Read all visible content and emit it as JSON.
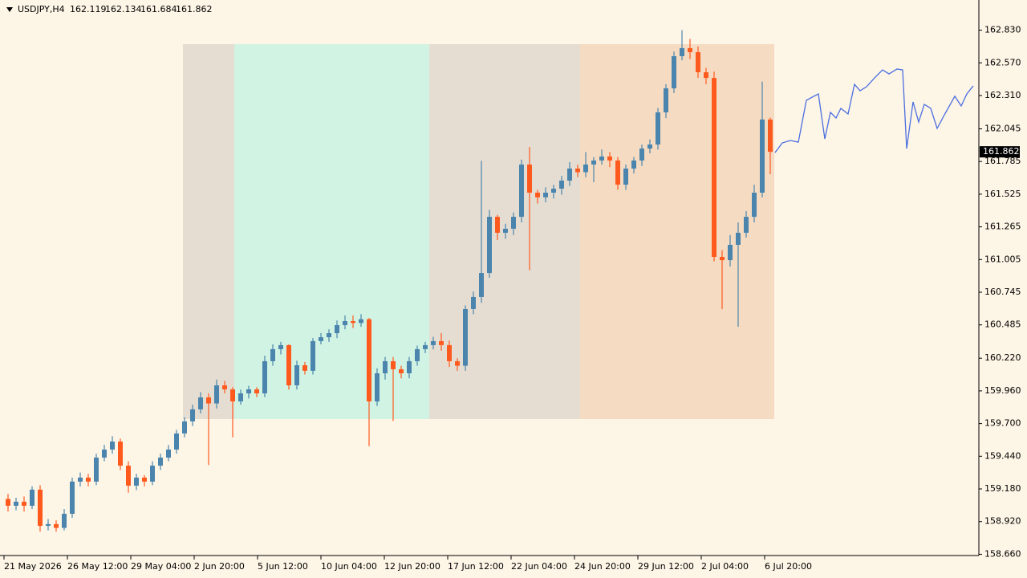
{
  "chart_data": {
    "type": "candlestick",
    "title": "USDJPY,H4",
    "up_color": "#4b85ad",
    "down_color": "#ff5a1e",
    "open": [
      159.1,
      159.046,
      159.078,
      159.046,
      159.174,
      158.886,
      158.9,
      158.87,
      158.982,
      159.238,
      159.27,
      159.238,
      159.429,
      159.493,
      159.557,
      159.365,
      159.206,
      159.27,
      159.238,
      159.365,
      159.429,
      159.493,
      159.621,
      159.717,
      159.813,
      159.908,
      159.86,
      160.004,
      159.972,
      159.876,
      159.94,
      159.972,
      159.94,
      160.196,
      160.292,
      160.324,
      160.004,
      160.164,
      160.12,
      160.356,
      160.387,
      160.419,
      160.483,
      160.515,
      160.5,
      160.53,
      159.876,
      160.1,
      160.196,
      160.132,
      160.1,
      160.196,
      160.292,
      160.324,
      160.356,
      160.324,
      160.196,
      160.16,
      160.611,
      160.707,
      160.898,
      161.345,
      161.218,
      161.25,
      161.345,
      161.761,
      161.537,
      161.5,
      161.537,
      161.569,
      161.633,
      161.729,
      161.7,
      161.761,
      161.793,
      161.825,
      161.793,
      161.601,
      161.729,
      161.793,
      161.888,
      161.92,
      162.176,
      162.367,
      162.623,
      162.687,
      162.655,
      162.495,
      162.45,
      161.026,
      161.0,
      161.122,
      161.218,
      161.345,
      161.537,
      162.119
    ],
    "high": [
      159.14,
      159.11,
      159.12,
      159.2,
      159.21,
      158.94,
      158.93,
      159.02,
      159.27,
      159.31,
      159.3,
      159.46,
      159.53,
      159.6,
      159.58,
      159.4,
      159.3,
      159.29,
      159.4,
      159.46,
      159.53,
      159.65,
      159.75,
      159.85,
      159.95,
      159.94,
      160.05,
      160.04,
      159.99,
      159.97,
      160.0,
      159.99,
      160.24,
      160.33,
      160.35,
      160.33,
      160.2,
      160.19,
      160.38,
      160.42,
      160.45,
      160.52,
      160.56,
      160.56,
      160.57,
      160.54,
      160.14,
      160.23,
      160.23,
      160.16,
      160.23,
      160.32,
      160.35,
      160.39,
      160.42,
      160.36,
      160.22,
      160.64,
      160.75,
      161.79,
      161.4,
      161.36,
      161.29,
      161.38,
      161.8,
      161.9,
      161.56,
      161.58,
      161.6,
      161.67,
      161.78,
      161.76,
      161.86,
      161.82,
      161.88,
      161.86,
      161.82,
      161.76,
      161.82,
      161.92,
      161.96,
      162.21,
      162.4,
      162.66,
      162.83,
      162.76,
      162.7,
      162.53,
      162.5,
      161.08,
      161.2,
      161.3,
      161.39,
      161.6,
      162.42,
      162.134
    ],
    "low": [
      159.0,
      159.01,
      159.0,
      159.02,
      158.84,
      158.85,
      158.84,
      158.85,
      158.95,
      159.2,
      159.2,
      159.21,
      159.4,
      159.46,
      159.33,
      159.15,
      159.17,
      159.2,
      159.21,
      159.33,
      159.4,
      159.46,
      159.59,
      159.68,
      159.78,
      159.37,
      159.82,
      159.94,
      159.59,
      159.85,
      159.9,
      159.91,
      159.91,
      160.16,
      160.25,
      159.97,
      159.97,
      160.09,
      160.09,
      160.33,
      160.35,
      160.38,
      160.45,
      160.46,
      160.47,
      159.52,
      159.84,
      160.05,
      159.72,
      160.06,
      160.06,
      160.16,
      160.26,
      160.29,
      160.28,
      160.15,
      160.12,
      160.12,
      160.57,
      160.66,
      160.86,
      161.16,
      161.17,
      161.2,
      161.3,
      160.92,
      161.45,
      161.46,
      161.49,
      161.52,
      161.59,
      161.66,
      161.66,
      161.62,
      161.76,
      161.74,
      161.56,
      161.56,
      161.69,
      161.75,
      161.85,
      161.88,
      162.13,
      162.33,
      162.59,
      162.6,
      162.45,
      162.4,
      160.99,
      160.61,
      160.95,
      160.47,
      161.18,
      161.3,
      161.5,
      161.684
    ],
    "close": [
      159.046,
      159.078,
      159.046,
      159.174,
      158.886,
      158.9,
      158.87,
      158.982,
      159.238,
      159.27,
      159.238,
      159.429,
      159.493,
      159.557,
      159.365,
      159.206,
      159.27,
      159.238,
      159.365,
      159.429,
      159.493,
      159.621,
      159.717,
      159.813,
      159.908,
      159.86,
      160.004,
      159.972,
      159.876,
      159.94,
      159.972,
      159.94,
      160.196,
      160.292,
      160.324,
      160.004,
      160.164,
      160.12,
      160.356,
      160.387,
      160.419,
      160.483,
      160.515,
      160.5,
      160.53,
      159.876,
      160.1,
      160.196,
      160.132,
      160.1,
      160.196,
      160.292,
      160.324,
      160.356,
      160.324,
      160.196,
      160.16,
      160.611,
      160.707,
      160.898,
      161.345,
      161.218,
      161.25,
      161.345,
      161.761,
      161.537,
      161.5,
      161.537,
      161.569,
      161.633,
      161.729,
      161.7,
      161.761,
      161.793,
      161.825,
      161.793,
      161.601,
      161.729,
      161.793,
      161.888,
      161.92,
      162.176,
      162.367,
      162.623,
      162.687,
      162.655,
      162.495,
      162.45,
      161.026,
      161.0,
      161.122,
      161.218,
      161.345,
      161.537,
      162.119,
      161.862
    ],
    "line": {
      "color": "#4a6ee0",
      "x": [
        96.1,
        97,
        98,
        99,
        100,
        101.5,
        102.3,
        103,
        103.7,
        104.3,
        105.2,
        106,
        106.7,
        107.5,
        108.5,
        109.5,
        110.3,
        111.3,
        112,
        112.5,
        113.3,
        114,
        114.7,
        115.5,
        116.3,
        117.1,
        118.5,
        119.3,
        120,
        120.8
      ],
      "values": [
        161.856,
        161.933,
        161.952,
        161.939,
        162.272,
        162.323,
        161.965,
        162.176,
        162.131,
        162.208,
        162.163,
        162.399,
        162.348,
        162.38,
        162.45,
        162.514,
        162.482,
        162.521,
        162.514,
        161.888,
        162.259,
        162.099,
        162.24,
        162.208,
        162.048,
        162.144,
        162.304,
        162.227,
        162.323,
        162.387
      ]
    },
    "xlim": [
      0,
      121.5
    ],
    "ylim": [
      158.65,
      163.07
    ],
    "xticks": [
      {
        "value": 0,
        "label": "21 May 2026"
      },
      {
        "value": 7.9,
        "label": "26 May 12:00"
      },
      {
        "value": 15.8,
        "label": "29 May 04:00"
      },
      {
        "value": 23.7,
        "label": "2 Jun 20:00"
      },
      {
        "value": 31.6,
        "label": "5 Jun 12:00"
      },
      {
        "value": 39.5,
        "label": "10 Jun 04:00"
      },
      {
        "value": 47.4,
        "label": "12 Jun 20:00"
      },
      {
        "value": 55.3,
        "label": "17 Jun 12:00"
      },
      {
        "value": 63.2,
        "label": "22 Jun 04:00"
      },
      {
        "value": 71.1,
        "label": "24 Jun 20:00"
      },
      {
        "value": 79,
        "label": "29 Jun 12:00"
      },
      {
        "value": 86.9,
        "label": "2 Jul 04:00"
      },
      {
        "value": 94.8,
        "label": "6 Jul 20:00"
      }
    ],
    "yticks": [
      {
        "value": 162.83,
        "label": "162.830"
      },
      {
        "value": 162.57,
        "label": "162.570"
      },
      {
        "value": 162.31,
        "label": "162.310"
      },
      162.045,
      161.785,
      161.525,
      161.265,
      161.005,
      160.745,
      160.485,
      {
        "value": 160.22,
        "label": "160.220"
      },
      {
        "value": 159.96,
        "label": "159.960"
      },
      {
        "value": 159.7,
        "label": "159.700"
      },
      {
        "value": 159.44,
        "label": "159.440"
      },
      {
        "value": 159.18,
        "label": "159.180"
      },
      {
        "value": 158.92,
        "label": "158.920"
      },
      {
        "value": 158.66,
        "label": "158.660"
      }
    ]
  }
}
